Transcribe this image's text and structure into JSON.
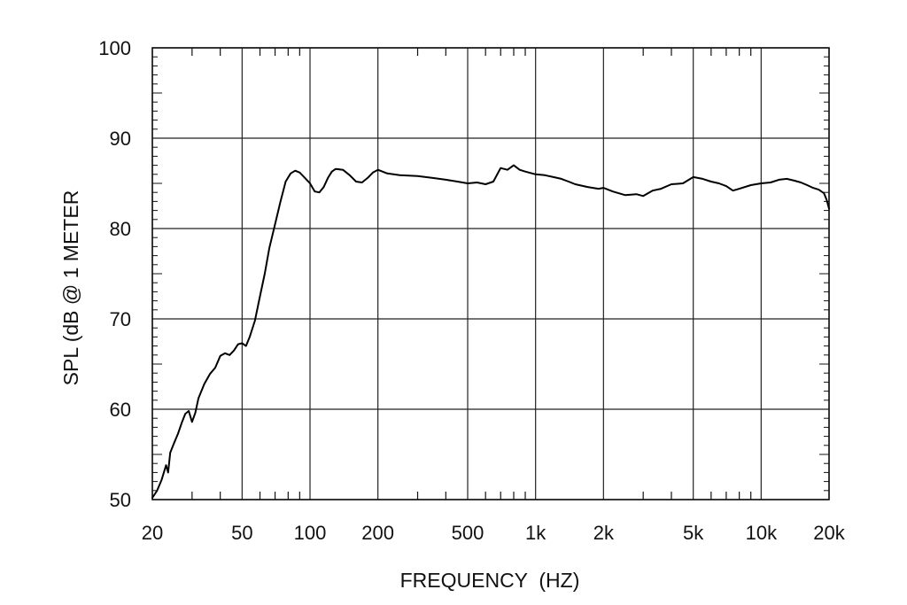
{
  "chart_data": {
    "type": "line",
    "title": "",
    "xlabel": "FREQUENCY  (HZ)",
    "ylabel": "SPL (dB @ 1 METER",
    "xscale": "log",
    "xlim": [
      20,
      20000
    ],
    "ylim": [
      50,
      100
    ],
    "grid": true,
    "x_ticks": [
      {
        "value": 20,
        "label": "20"
      },
      {
        "value": 50,
        "label": "50"
      },
      {
        "value": 100,
        "label": "100"
      },
      {
        "value": 200,
        "label": "200"
      },
      {
        "value": 500,
        "label": "500"
      },
      {
        "value": 1000,
        "label": "1k"
      },
      {
        "value": 2000,
        "label": "2k"
      },
      {
        "value": 5000,
        "label": "5k"
      },
      {
        "value": 10000,
        "label": "10k"
      },
      {
        "value": 20000,
        "label": "20k"
      }
    ],
    "y_ticks": [
      {
        "value": 50,
        "label": "50"
      },
      {
        "value": 60,
        "label": "60"
      },
      {
        "value": 70,
        "label": "70"
      },
      {
        "value": 80,
        "label": "80"
      },
      {
        "value": 90,
        "label": "90"
      },
      {
        "value": 100,
        "label": "100"
      }
    ],
    "series": [
      {
        "color": "#000000",
        "points": [
          [
            20,
            50.2
          ],
          [
            21,
            51.0
          ],
          [
            22,
            52.2
          ],
          [
            23,
            53.8
          ],
          [
            23.5,
            53.0
          ],
          [
            24,
            55.2
          ],
          [
            25,
            56.3
          ],
          [
            26,
            57.3
          ],
          [
            27,
            58.5
          ],
          [
            28,
            59.5
          ],
          [
            29,
            59.8
          ],
          [
            30,
            58.6
          ],
          [
            31,
            59.6
          ],
          [
            32,
            61.2
          ],
          [
            34,
            62.8
          ],
          [
            36,
            63.9
          ],
          [
            38,
            64.6
          ],
          [
            40,
            65.9
          ],
          [
            42,
            66.2
          ],
          [
            44,
            66.0
          ],
          [
            46,
            66.5
          ],
          [
            48,
            67.2
          ],
          [
            50,
            67.3
          ],
          [
            52,
            67.0
          ],
          [
            54,
            68.0
          ],
          [
            57,
            69.8
          ],
          [
            60,
            72.5
          ],
          [
            63,
            75.0
          ],
          [
            66,
            77.8
          ],
          [
            70,
            80.5
          ],
          [
            74,
            83.0
          ],
          [
            78,
            85.2
          ],
          [
            82,
            86.1
          ],
          [
            86,
            86.4
          ],
          [
            90,
            86.2
          ],
          [
            95,
            85.6
          ],
          [
            100,
            85.0
          ],
          [
            105,
            84.1
          ],
          [
            110,
            84.0
          ],
          [
            115,
            84.6
          ],
          [
            120,
            85.6
          ],
          [
            125,
            86.3
          ],
          [
            130,
            86.6
          ],
          [
            140,
            86.5
          ],
          [
            150,
            85.9
          ],
          [
            160,
            85.2
          ],
          [
            170,
            85.1
          ],
          [
            180,
            85.6
          ],
          [
            190,
            86.2
          ],
          [
            200,
            86.5
          ],
          [
            220,
            86.1
          ],
          [
            250,
            85.9
          ],
          [
            300,
            85.8
          ],
          [
            350,
            85.6
          ],
          [
            400,
            85.4
          ],
          [
            450,
            85.2
          ],
          [
            500,
            85.0
          ],
          [
            550,
            85.1
          ],
          [
            600,
            84.9
          ],
          [
            650,
            85.2
          ],
          [
            700,
            86.7
          ],
          [
            750,
            86.5
          ],
          [
            800,
            87.0
          ],
          [
            850,
            86.5
          ],
          [
            900,
            86.3
          ],
          [
            1000,
            86.0
          ],
          [
            1100,
            85.9
          ],
          [
            1200,
            85.7
          ],
          [
            1300,
            85.5
          ],
          [
            1400,
            85.2
          ],
          [
            1500,
            84.9
          ],
          [
            1700,
            84.6
          ],
          [
            1900,
            84.4
          ],
          [
            2000,
            84.5
          ],
          [
            2200,
            84.1
          ],
          [
            2500,
            83.7
          ],
          [
            2800,
            83.8
          ],
          [
            3000,
            83.6
          ],
          [
            3300,
            84.2
          ],
          [
            3600,
            84.4
          ],
          [
            4000,
            84.9
          ],
          [
            4500,
            85.0
          ],
          [
            5000,
            85.7
          ],
          [
            5500,
            85.5
          ],
          [
            6000,
            85.2
          ],
          [
            6500,
            85.0
          ],
          [
            7000,
            84.7
          ],
          [
            7500,
            84.2
          ],
          [
            8000,
            84.4
          ],
          [
            9000,
            84.8
          ],
          [
            10000,
            85.0
          ],
          [
            11000,
            85.1
          ],
          [
            12000,
            85.4
          ],
          [
            13000,
            85.5
          ],
          [
            14000,
            85.3
          ],
          [
            15000,
            85.1
          ],
          [
            16000,
            84.8
          ],
          [
            17000,
            84.5
          ],
          [
            18000,
            84.3
          ],
          [
            19000,
            83.9
          ],
          [
            19500,
            83.2
          ],
          [
            20000,
            82.2
          ]
        ]
      }
    ]
  }
}
